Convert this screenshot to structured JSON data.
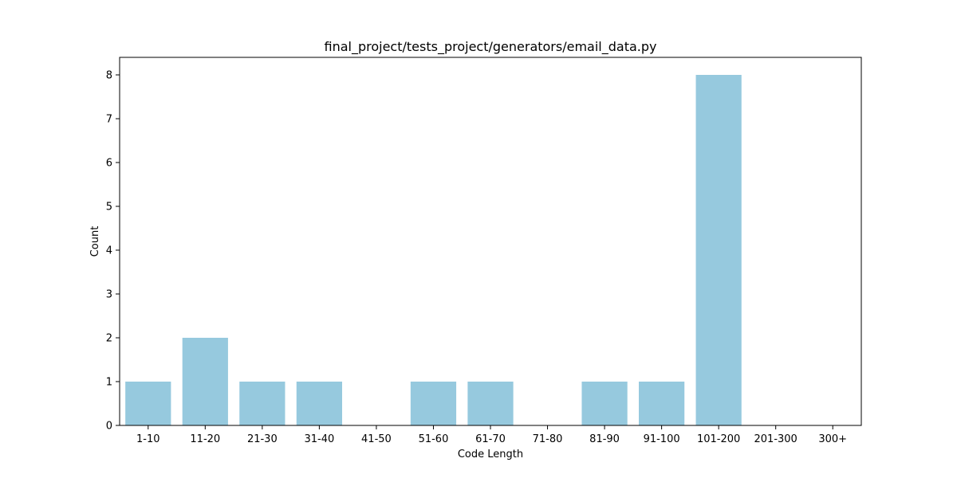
{
  "chart_data": {
    "type": "bar",
    "title": "final_project/tests_project/generators/email_data.py",
    "xlabel": "Code Length",
    "ylabel": "Count",
    "categories": [
      "1-10",
      "11-20",
      "21-30",
      "31-40",
      "41-50",
      "51-60",
      "61-70",
      "71-80",
      "81-90",
      "91-100",
      "101-200",
      "201-300",
      "300+"
    ],
    "values": [
      1,
      2,
      1,
      1,
      0,
      1,
      1,
      0,
      1,
      1,
      8,
      0,
      0
    ],
    "ylim": [
      0,
      8.4
    ],
    "yticks": [
      0,
      1,
      2,
      3,
      4,
      5,
      6,
      7,
      8
    ],
    "bar_color": "#96c9de",
    "grid": false
  }
}
